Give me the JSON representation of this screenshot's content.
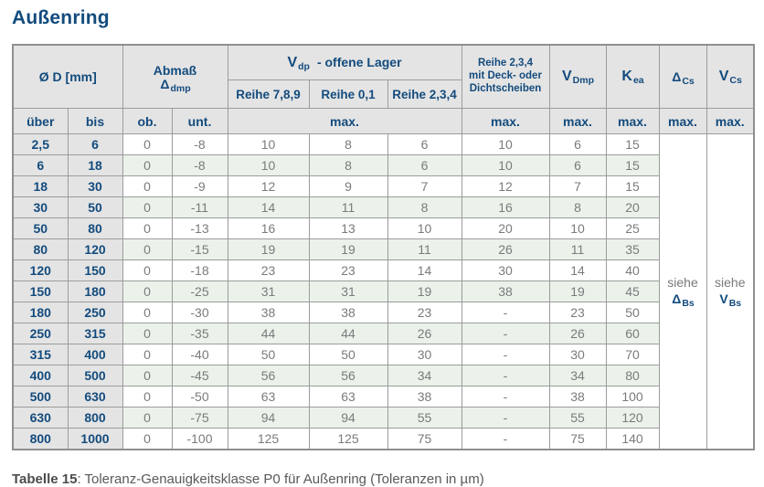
{
  "page": {
    "title": "Außenring",
    "caption_bold": "Tabelle 15",
    "caption_rest": ": Toleranz-Genauigkeitsklasse P0 für Außenring (Toleranzen in µm)"
  },
  "colors": {
    "heading_blue": "#134b7d",
    "header_bg": "#e4e4e4",
    "row_green": "#eaf2e9",
    "value_grey": "#7a7b7d",
    "border_grey": "#9c9c9c"
  },
  "table": {
    "header": {
      "d_label": "Ø D  [mm]",
      "abmass_line1": "Abmaß",
      "abmass_sym": "Δ",
      "abmass_sub": "dmp",
      "vdp_sym": "V",
      "vdp_sub": "dp",
      "vdp_rest": "-  offene Lager",
      "reihe_789": "Reihe 7,8,9",
      "reihe_01": "Reihe 0,1",
      "reihe_234": "Reihe 2,3,4",
      "deck_line1": "Reihe 2,3,4",
      "deck_line2": "mit Deck- oder",
      "deck_line3": "Dichtscheiben",
      "vdmp_sym": "V",
      "vdmp_sub": "Dmp",
      "kea_sym": "K",
      "kea_sub": "ea",
      "dcs_sym": "Δ",
      "dcs_sub": "Cs",
      "vcs_sym": "V",
      "vcs_sub": "Cs",
      "ueber": "über",
      "bis": "bis",
      "ob": "ob.",
      "unt": "unt.",
      "max": "max."
    },
    "siehe": {
      "dbs_text": "siehe",
      "dbs_sym": "Δ",
      "dbs_sub": "Bs",
      "vbs_text": "siehe",
      "vbs_sym": "V",
      "vbs_sub": "Bs"
    },
    "rows": [
      {
        "ueber": "2,5",
        "bis": "6",
        "values": [
          "0",
          "-8",
          "10",
          "8",
          "6",
          "10",
          "6",
          "15"
        ]
      },
      {
        "ueber": "6",
        "bis": "18",
        "values": [
          "0",
          "-8",
          "10",
          "8",
          "6",
          "10",
          "6",
          "15"
        ]
      },
      {
        "ueber": "18",
        "bis": "30",
        "values": [
          "0",
          "-9",
          "12",
          "9",
          "7",
          "12",
          "7",
          "15"
        ]
      },
      {
        "ueber": "30",
        "bis": "50",
        "values": [
          "0",
          "-11",
          "14",
          "11",
          "8",
          "16",
          "8",
          "20"
        ]
      },
      {
        "ueber": "50",
        "bis": "80",
        "values": [
          "0",
          "-13",
          "16",
          "13",
          "10",
          "20",
          "10",
          "25"
        ]
      },
      {
        "ueber": "80",
        "bis": "120",
        "values": [
          "0",
          "-15",
          "19",
          "19",
          "11",
          "26",
          "11",
          "35"
        ]
      },
      {
        "ueber": "120",
        "bis": "150",
        "values": [
          "0",
          "-18",
          "23",
          "23",
          "14",
          "30",
          "14",
          "40"
        ]
      },
      {
        "ueber": "150",
        "bis": "180",
        "values": [
          "0",
          "-25",
          "31",
          "31",
          "19",
          "38",
          "19",
          "45"
        ]
      },
      {
        "ueber": "180",
        "bis": "250",
        "values": [
          "0",
          "-30",
          "38",
          "38",
          "23",
          "-",
          "23",
          "50"
        ]
      },
      {
        "ueber": "250",
        "bis": "315",
        "values": [
          "0",
          "-35",
          "44",
          "44",
          "26",
          "-",
          "26",
          "60"
        ]
      },
      {
        "ueber": "315",
        "bis": "400",
        "values": [
          "0",
          "-40",
          "50",
          "50",
          "30",
          "-",
          "30",
          "70"
        ]
      },
      {
        "ueber": "400",
        "bis": "500",
        "values": [
          "0",
          "-45",
          "56",
          "56",
          "34",
          "-",
          "34",
          "80"
        ]
      },
      {
        "ueber": "500",
        "bis": "630",
        "values": [
          "0",
          "-50",
          "63",
          "63",
          "38",
          "-",
          "38",
          "100"
        ]
      },
      {
        "ueber": "630",
        "bis": "800",
        "values": [
          "0",
          "-75",
          "94",
          "94",
          "55",
          "-",
          "55",
          "120"
        ]
      },
      {
        "ueber": "800",
        "bis": "1000",
        "values": [
          "0",
          "-100",
          "125",
          "125",
          "75",
          "-",
          "75",
          "140"
        ]
      }
    ]
  }
}
